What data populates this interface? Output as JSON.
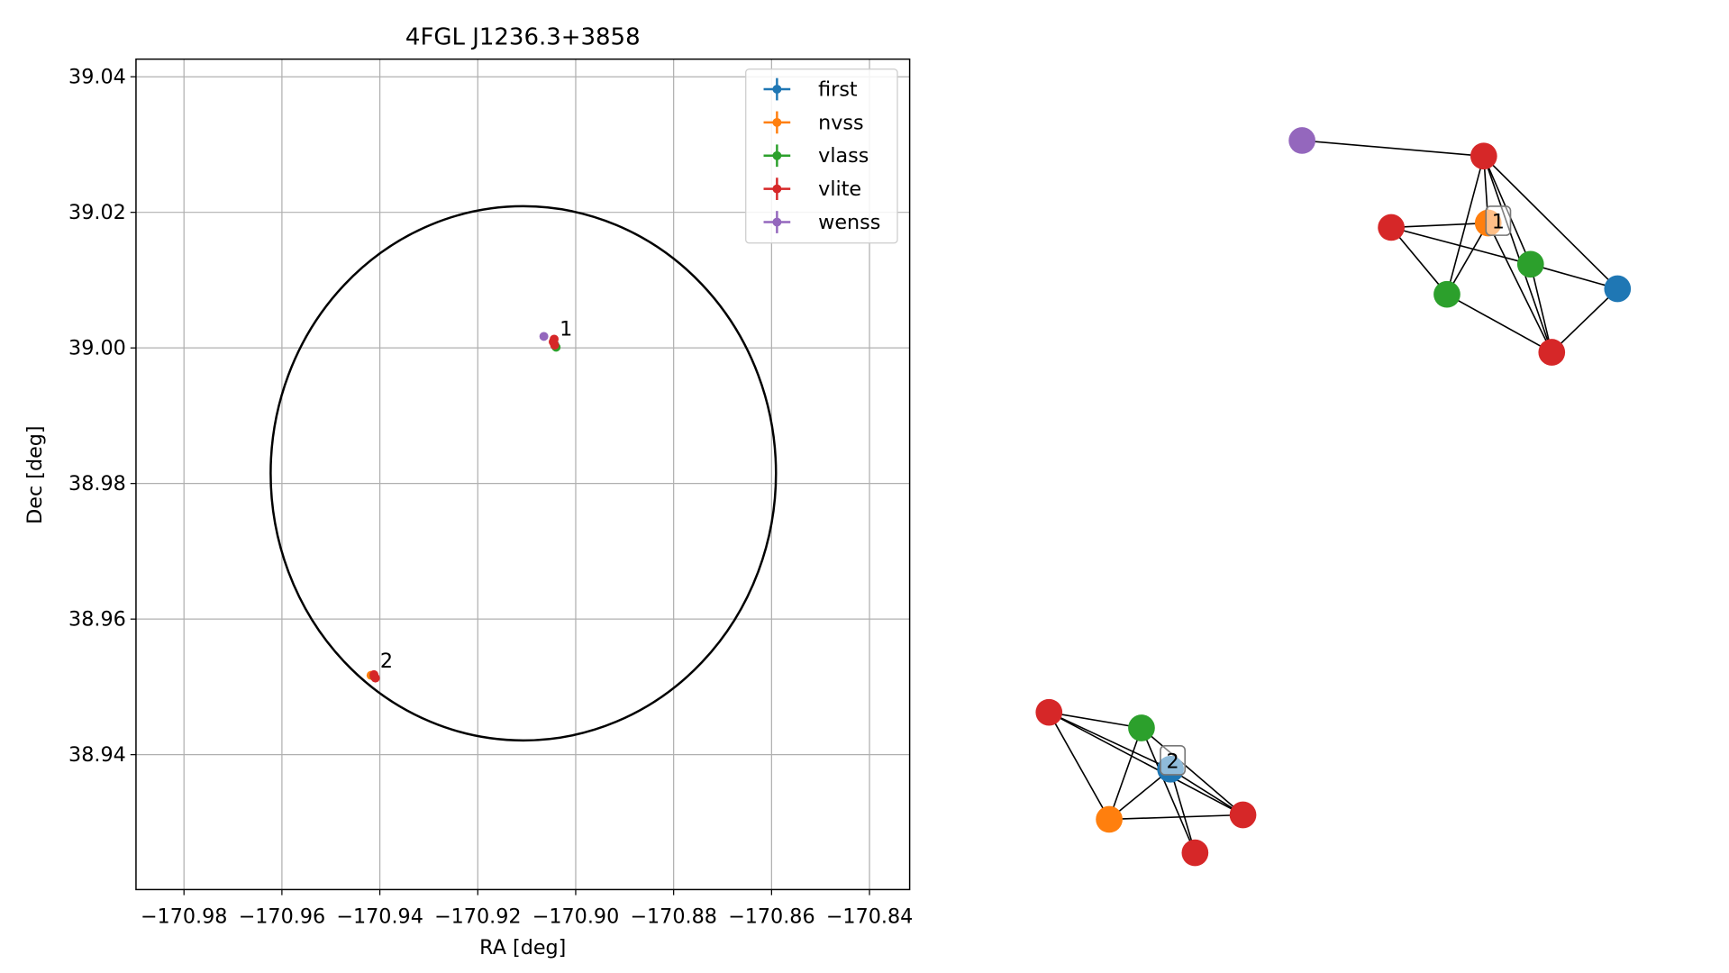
{
  "chart_data": {
    "type": "scatter",
    "title": "4FGL J1236.3+3858",
    "x_label": "RA [deg]",
    "y_label": "Dec [deg]",
    "xlim": [
      -170.9898,
      -170.8318
    ],
    "ylim": [
      38.9201,
      39.0426
    ],
    "xticks": [
      {
        "value": -170.98,
        "label": "−170.98"
      },
      {
        "value": -170.96,
        "label": "−170.96"
      },
      {
        "value": -170.94,
        "label": "−170.94"
      },
      {
        "value": -170.92,
        "label": "−170.92"
      },
      {
        "value": -170.9,
        "label": "−170.90"
      },
      {
        "value": -170.88,
        "label": "−170.88"
      },
      {
        "value": -170.86,
        "label": "−170.86"
      },
      {
        "value": -170.84,
        "label": "−170.84"
      }
    ],
    "yticks": [
      38.94,
      38.96,
      38.98,
      {
        "value": 39.0,
        "label": "39.00"
      },
      39.02,
      39.04
    ],
    "grid": true,
    "legend": "upper right",
    "region": {
      "ra": -170.9107,
      "dec": 38.9815,
      "ra_radius": 0.0516,
      "dec_radius": 0.0394,
      "color": "#000000"
    },
    "series": [
      {
        "name": "first",
        "color": "#1f77b4",
        "x": [
          -170.9043,
          -170.941
        ],
        "values": [
          39.0005,
          38.9514
        ]
      },
      {
        "name": "nvss",
        "color": "#ff7f0e",
        "x": [
          -170.9045,
          -170.9418
        ],
        "values": [
          39.0008,
          38.9517
        ]
      },
      {
        "name": "vlass",
        "color": "#2ca02c",
        "x": [
          -170.9042,
          -170.904,
          -170.9412
        ],
        "values": [
          39.0003,
          39.0001,
          38.9516
        ]
      },
      {
        "name": "vlite",
        "color": "#d62728",
        "x": [
          -170.9044,
          -170.9046,
          -170.9043,
          -170.9411,
          -170.9409,
          -170.9412
        ],
        "values": [
          39.0013,
          39.0009,
          39.0004,
          38.9515,
          38.9513,
          38.9518
        ]
      },
      {
        "name": "wenss",
        "color": "#9467bd",
        "x": [
          -170.9065
        ],
        "values": [
          39.0017
        ]
      }
    ],
    "annotations": [
      "1",
      "2"
    ],
    "graph_labels": [
      "1",
      "2"
    ]
  }
}
